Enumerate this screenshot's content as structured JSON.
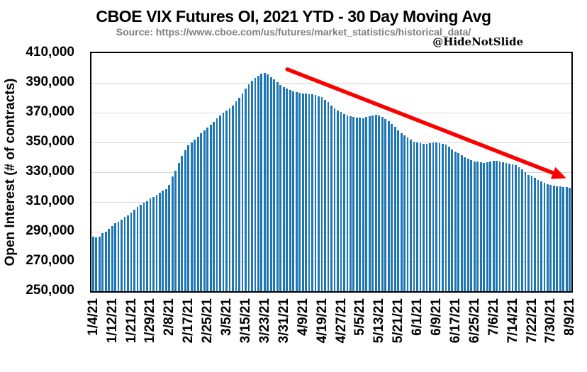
{
  "header": {
    "title": "CBOE VIX Futures OI, 2021 YTD - 30 Day Moving Avg",
    "source": "Source: https://www.cboe.com/us/futures/market_statistics/historical_data/",
    "watermark": "@HideNotSlide"
  },
  "chart_data": {
    "type": "bar",
    "title": "CBOE VIX Futures OI, 2021 YTD - 30 Day Moving Avg",
    "xlabel": "",
    "ylabel": "Open Interest (# of contracts)",
    "ylim": [
      250000,
      410000
    ],
    "ytick_step": 20000,
    "grid": "horizontal",
    "legend": "none",
    "bar_color": "#1e76b5",
    "grid_color": "#d9d9d9",
    "label_every": 6,
    "x": [
      "1/4/21",
      "1/5/21",
      "1/6/21",
      "1/7/21",
      "1/8/21",
      "1/11/21",
      "1/12/21",
      "1/13/21",
      "1/14/21",
      "1/15/21",
      "1/19/21",
      "1/20/21",
      "1/21/21",
      "1/22/21",
      "1/25/21",
      "1/26/21",
      "1/27/21",
      "1/28/21",
      "1/29/21",
      "2/1/21",
      "2/2/21",
      "2/3/21",
      "2/4/21",
      "2/5/21",
      "2/8/21",
      "2/9/21",
      "2/10/21",
      "2/11/21",
      "2/12/21",
      "2/16/21",
      "2/17/21",
      "2/18/21",
      "2/19/21",
      "2/22/21",
      "2/23/21",
      "2/24/21",
      "2/25/21",
      "2/26/21",
      "3/1/21",
      "3/2/21",
      "3/3/21",
      "3/4/21",
      "3/5/21",
      "3/8/21",
      "3/9/21",
      "3/10/21",
      "3/11/21",
      "3/12/21",
      "3/15/21",
      "3/16/21",
      "3/17/21",
      "3/18/21",
      "3/19/21",
      "3/22/21",
      "3/23/21",
      "3/24/21",
      "3/25/21",
      "3/26/21",
      "3/29/21",
      "3/30/21",
      "3/31/21",
      "4/1/21",
      "4/5/21",
      "4/6/21",
      "4/7/21",
      "4/8/21",
      "4/9/21",
      "4/12/21",
      "4/13/21",
      "4/14/21",
      "4/15/21",
      "4/16/21",
      "4/19/21",
      "4/20/21",
      "4/21/21",
      "4/22/21",
      "4/23/21",
      "4/26/21",
      "4/27/21",
      "4/28/21",
      "4/29/21",
      "4/30/21",
      "5/3/21",
      "5/4/21",
      "5/5/21",
      "5/6/21",
      "5/7/21",
      "5/10/21",
      "5/11/21",
      "5/12/21",
      "5/13/21",
      "5/14/21",
      "5/17/21",
      "5/18/21",
      "5/19/21",
      "5/20/21",
      "5/21/21",
      "5/24/21",
      "5/25/21",
      "5/26/21",
      "5/27/21",
      "5/28/21",
      "6/1/21",
      "6/2/21",
      "6/3/21",
      "6/4/21",
      "6/7/21",
      "6/8/21",
      "6/9/21",
      "6/10/21",
      "6/11/21",
      "6/14/21",
      "6/15/21",
      "6/16/21",
      "6/17/21",
      "6/18/21",
      "6/21/21",
      "6/22/21",
      "6/23/21",
      "6/24/21",
      "6/25/21",
      "6/28/21",
      "6/29/21",
      "6/30/21",
      "7/1/21",
      "7/2/21",
      "7/6/21",
      "7/7/21",
      "7/8/21",
      "7/9/21",
      "7/12/21",
      "7/13/21",
      "7/14/21",
      "7/15/21",
      "7/16/21",
      "7/19/21",
      "7/20/21",
      "7/21/21",
      "7/22/21",
      "7/23/21",
      "7/26/21",
      "7/27/21",
      "7/28/21",
      "7/29/21",
      "7/30/21",
      "8/2/21",
      "8/3/21",
      "8/4/21",
      "8/5/21",
      "8/6/21",
      "8/9/21"
    ],
    "values": [
      286500,
      286000,
      286500,
      289000,
      290000,
      292000,
      294000,
      295500,
      296500,
      298000,
      300000,
      301000,
      303000,
      305000,
      306500,
      308000,
      309500,
      310500,
      312500,
      313500,
      315000,
      316000,
      317500,
      318500,
      321500,
      327000,
      331000,
      336000,
      341000,
      345000,
      348000,
      350000,
      352000,
      354000,
      356000,
      358000,
      360000,
      362000,
      364000,
      366000,
      368000,
      370000,
      371500,
      373000,
      375000,
      377500,
      380000,
      383000,
      386000,
      389000,
      391500,
      393500,
      395000,
      396000,
      396500,
      395500,
      394000,
      392500,
      390500,
      388500,
      387000,
      386000,
      385200,
      384500,
      384000,
      383500,
      383000,
      382800,
      382500,
      382200,
      381800,
      381200,
      380500,
      378500,
      377000,
      375000,
      373000,
      371500,
      370300,
      369000,
      368200,
      367500,
      367000,
      366700,
      366500,
      366400,
      367000,
      367800,
      368200,
      368500,
      368200,
      367000,
      365900,
      364300,
      362400,
      360400,
      358300,
      356400,
      354900,
      353300,
      351700,
      350600,
      350100,
      349500,
      349200,
      349200,
      349600,
      350000,
      350100,
      349700,
      349200,
      348600,
      347100,
      345500,
      344000,
      342700,
      341600,
      340000,
      339000,
      338000,
      337400,
      337000,
      336600,
      336200,
      336500,
      337200,
      337700,
      337500,
      337000,
      336500,
      336100,
      335800,
      335300,
      334600,
      333300,
      331700,
      330000,
      328300,
      327500,
      326200,
      325000,
      323800,
      322800,
      322000,
      321500,
      321000,
      320600,
      320300,
      320000,
      319800,
      319500
    ],
    "annotation_arrow": {
      "color": "#fb0000",
      "x1_frac": 0.408,
      "y1_frac": 0.068,
      "x2_frac": 0.97,
      "y2_frac": 0.51
    }
  }
}
